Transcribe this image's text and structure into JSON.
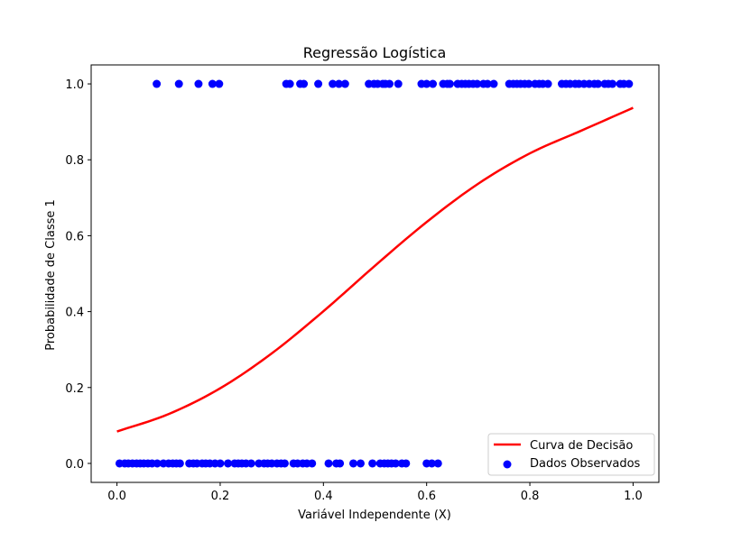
{
  "chart_data": {
    "type": "scatter",
    "title": "Regressão Logística",
    "xlabel": "Variável Independente (X)",
    "ylabel": "Probabilidade de Classe 1",
    "xlim": [
      -0.05,
      1.05
    ],
    "ylim": [
      -0.05,
      1.05
    ],
    "xticks": [
      0.0,
      0.2,
      0.4,
      0.6,
      0.8,
      1.0
    ],
    "xtick_labels": [
      "0.0",
      "0.2",
      "0.4",
      "0.6",
      "0.8",
      "1.0"
    ],
    "yticks": [
      0.0,
      0.2,
      0.4,
      0.6,
      0.8,
      1.0
    ],
    "ytick_labels": [
      "0.0",
      "0.2",
      "0.4",
      "0.6",
      "0.8",
      "1.0"
    ],
    "grid": false,
    "legend_position": "lower-right",
    "series": [
      {
        "name": "Curva de Decisão",
        "kind": "line",
        "color": "#ff0000",
        "x": [
          0.0,
          0.1,
          0.2,
          0.3,
          0.4,
          0.5,
          0.6,
          0.7,
          0.8,
          0.9,
          1.0
        ],
        "y": [
          0.084,
          0.13,
          0.198,
          0.29,
          0.401,
          0.521,
          0.636,
          0.737,
          0.817,
          0.877,
          0.937
        ]
      },
      {
        "name": "Dados Observados",
        "kind": "scatter",
        "color": "#0000ff",
        "points_class0_x": [
          0.005,
          0.015,
          0.022,
          0.03,
          0.038,
          0.045,
          0.052,
          0.06,
          0.068,
          0.078,
          0.09,
          0.1,
          0.108,
          0.115,
          0.122,
          0.14,
          0.148,
          0.155,
          0.165,
          0.172,
          0.18,
          0.19,
          0.2,
          0.215,
          0.228,
          0.235,
          0.242,
          0.25,
          0.26,
          0.275,
          0.285,
          0.292,
          0.3,
          0.31,
          0.318,
          0.325,
          0.342,
          0.35,
          0.36,
          0.368,
          0.378,
          0.41,
          0.425,
          0.432,
          0.458,
          0.472,
          0.495,
          0.51,
          0.518,
          0.525,
          0.532,
          0.54,
          0.552,
          0.56,
          0.6,
          0.61,
          0.622
        ],
        "points_class0_y": 0,
        "points_class1_x": [
          0.077,
          0.12,
          0.158,
          0.185,
          0.198,
          0.328,
          0.335,
          0.355,
          0.362,
          0.39,
          0.418,
          0.43,
          0.442,
          0.488,
          0.498,
          0.505,
          0.515,
          0.52,
          0.528,
          0.545,
          0.59,
          0.6,
          0.612,
          0.632,
          0.64,
          0.645,
          0.66,
          0.668,
          0.675,
          0.682,
          0.69,
          0.698,
          0.71,
          0.718,
          0.73,
          0.76,
          0.768,
          0.775,
          0.782,
          0.79,
          0.798,
          0.81,
          0.818,
          0.825,
          0.835,
          0.862,
          0.87,
          0.878,
          0.888,
          0.895,
          0.905,
          0.915,
          0.925,
          0.932,
          0.945,
          0.952,
          0.96,
          0.975,
          0.982,
          0.992
        ],
        "points_class1_y": 1
      }
    ]
  }
}
